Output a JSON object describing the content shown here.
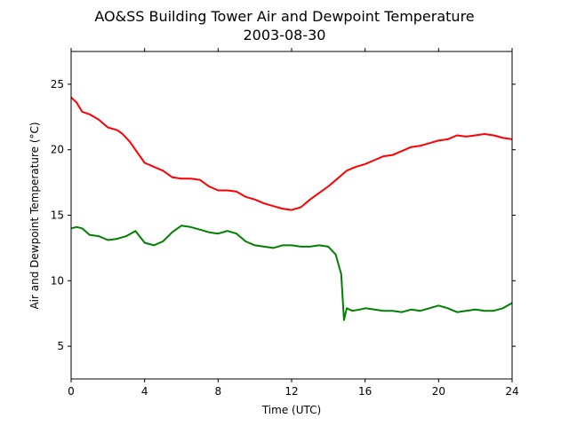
{
  "chart_data": {
    "type": "line",
    "title": "AO&SS Building Tower Air and Dewpoint Temperature",
    "subtitle": "2003-08-30",
    "xlabel": "Time (UTC)",
    "ylabel": "Air and Dewpoint Temperature (°C)",
    "xlim": [
      0,
      24
    ],
    "ylim": [
      2.5,
      27.5
    ],
    "xticks": [
      0,
      4,
      8,
      12,
      16,
      20,
      24
    ],
    "yticks": [
      5,
      10,
      15,
      20,
      25
    ],
    "grid": false,
    "colors": {
      "air": "#ff0000",
      "dewpoint": "#008000"
    },
    "series": [
      {
        "key": "air",
        "x": [
          0,
          0.3,
          0.6,
          1,
          1.5,
          2,
          2.5,
          2.8,
          3.2,
          3.5,
          4,
          4.5,
          5,
          5.5,
          6,
          6.5,
          7,
          7.5,
          8,
          8.5,
          9,
          9.5,
          10,
          10.5,
          11,
          11.5,
          12,
          12.5,
          13,
          13.5,
          14,
          14.5,
          15,
          15.5,
          16,
          16.5,
          17,
          17.5,
          18,
          18.5,
          19,
          19.5,
          20,
          20.5,
          21,
          21.5,
          22,
          22.5,
          23,
          23.5,
          24
        ],
        "y": [
          24.0,
          23.6,
          22.9,
          22.7,
          22.3,
          21.7,
          21.5,
          21.2,
          20.6,
          20.0,
          19.0,
          18.7,
          18.4,
          17.9,
          17.8,
          17.8,
          17.7,
          17.2,
          16.9,
          16.9,
          16.8,
          16.4,
          16.2,
          15.9,
          15.7,
          15.5,
          15.4,
          15.6,
          16.2,
          16.7,
          17.2,
          17.8,
          18.4,
          18.7,
          18.9,
          19.2,
          19.5,
          19.6,
          19.9,
          20.2,
          20.3,
          20.5,
          20.7,
          20.8,
          21.1,
          21.0,
          21.1,
          21.2,
          21.1,
          20.9,
          20.8
        ]
      },
      {
        "key": "dewpoint",
        "x": [
          0,
          0.3,
          0.6,
          1,
          1.5,
          2,
          2.5,
          3,
          3.5,
          4,
          4.5,
          5,
          5.5,
          6,
          6.5,
          7,
          7.5,
          8,
          8.5,
          9,
          9.5,
          10,
          10.5,
          11,
          11.5,
          12,
          12.5,
          13,
          13.5,
          14,
          14.4,
          14.7,
          14.85,
          15,
          15.3,
          15.7,
          16,
          16.5,
          17,
          17.5,
          18,
          18.5,
          19,
          19.5,
          20,
          20.5,
          21,
          21.5,
          22,
          22.5,
          23,
          23.5,
          24
        ],
        "y": [
          14.0,
          14.1,
          14.0,
          13.5,
          13.4,
          13.1,
          13.2,
          13.4,
          13.8,
          12.9,
          12.7,
          13.0,
          13.7,
          14.2,
          14.1,
          13.9,
          13.7,
          13.6,
          13.8,
          13.6,
          13.0,
          12.7,
          12.6,
          12.5,
          12.7,
          12.7,
          12.6,
          12.6,
          12.7,
          12.6,
          12.0,
          10.5,
          7.0,
          7.9,
          7.7,
          7.8,
          7.9,
          7.8,
          7.7,
          7.7,
          7.6,
          7.8,
          7.7,
          7.9,
          8.1,
          7.9,
          7.6,
          7.7,
          7.8,
          7.7,
          7.7,
          7.9,
          8.3
        ]
      }
    ]
  }
}
